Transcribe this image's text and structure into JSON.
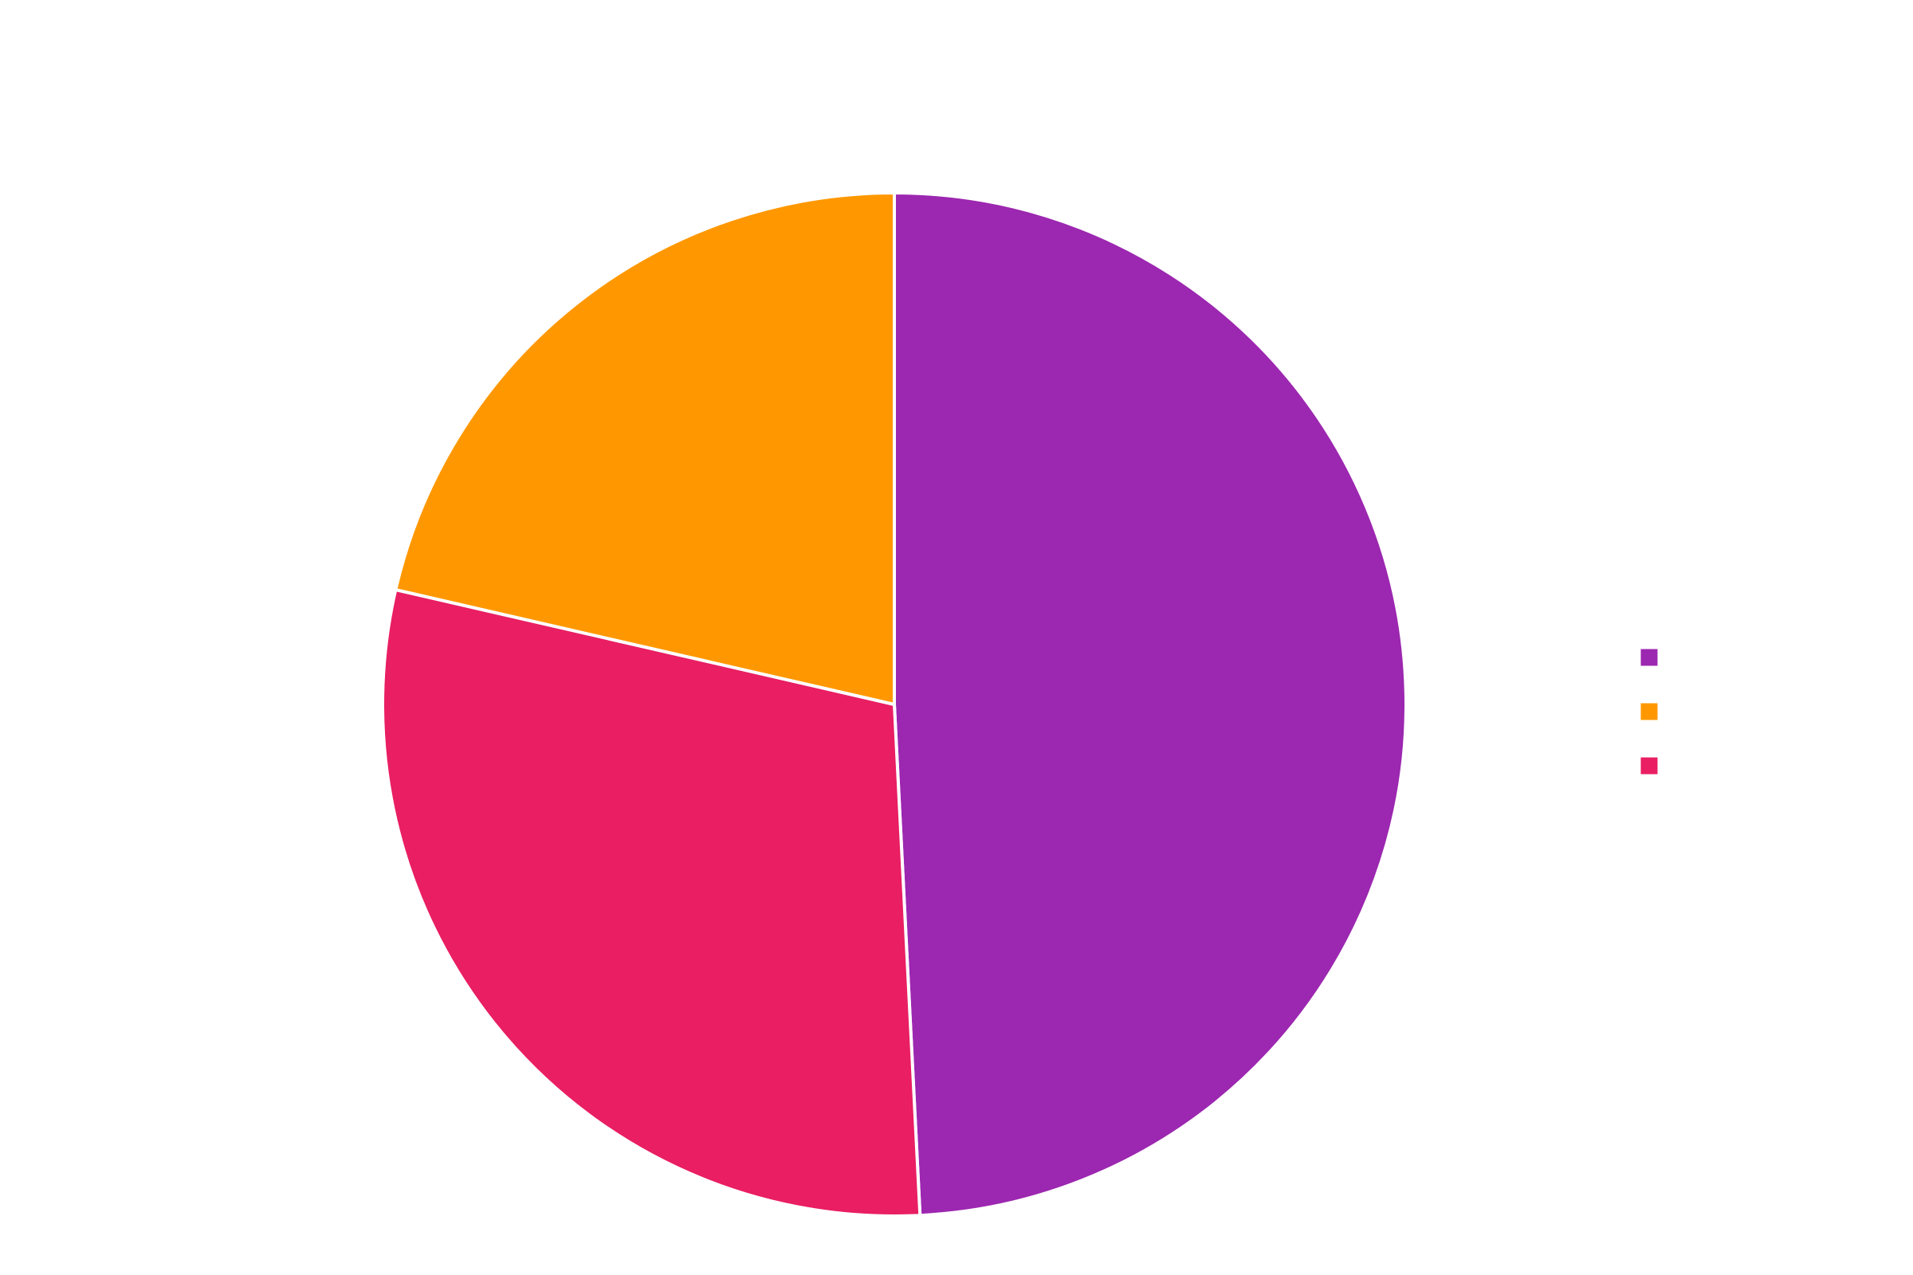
{
  "chart_data": {
    "type": "pie",
    "start_angle_deg": 90,
    "direction": "clockwise",
    "slice_border_color": "#ffffff",
    "slices": [
      {
        "label": "",
        "value": 49.2,
        "color": "#9c27b0"
      },
      {
        "label": "",
        "value": 29.4,
        "color": "#e91e63"
      },
      {
        "label": "",
        "value": 21.4,
        "color": "#ff9800"
      }
    ],
    "legend": {
      "placement": "right",
      "entries": [
        {
          "label": "",
          "color": "#9c27b0"
        },
        {
          "label": "",
          "color": "#ff9800"
        },
        {
          "label": "",
          "color": "#e91e63"
        }
      ]
    }
  }
}
